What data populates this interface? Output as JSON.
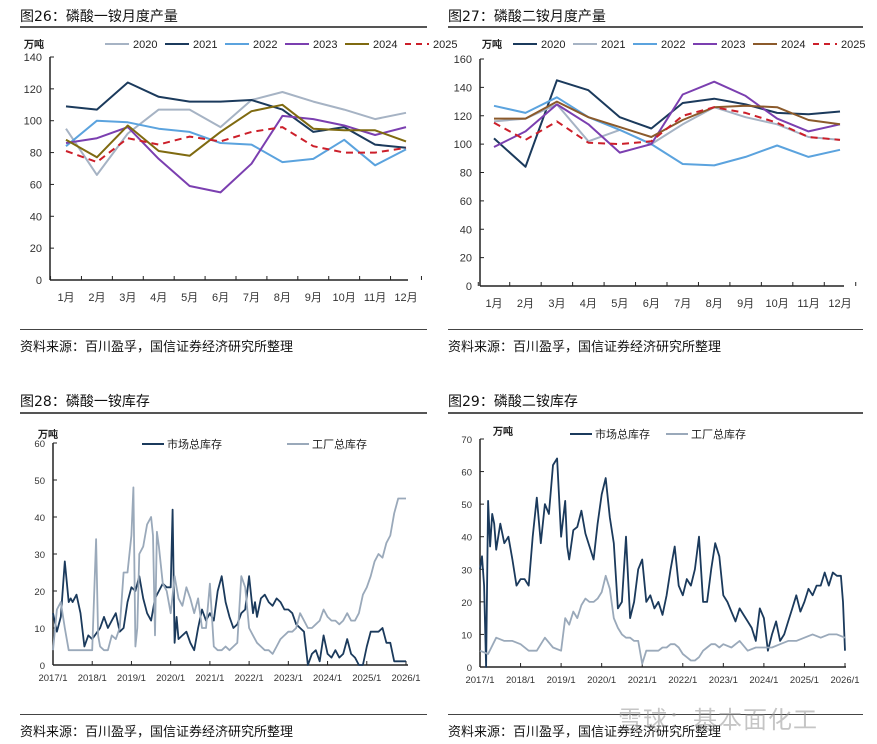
{
  "figures": [
    {
      "title": "图26：磷酸一铵月度产量",
      "source": "资料来源：百川盈孚，国信证券经济研究所整理"
    },
    {
      "title": "图27：磷酸二铵月度产量",
      "source": "资料来源：百川盈孚，国信证券经济研究所整理"
    },
    {
      "title": "图28：磷酸一铵库存",
      "source": "资料来源：百川盈孚，国信证券经济研究所整理"
    },
    {
      "title": "图29：磷酸二铵库存",
      "source": "资料来源：百川盈孚，国信证券经济研究所整理"
    }
  ],
  "watermark": "雪球：基本面化工",
  "chart_data": [
    {
      "type": "line",
      "title": "图26：磷酸一铵月度产量",
      "unit": "万吨",
      "categories": [
        "1月",
        "2月",
        "3月",
        "4月",
        "5月",
        "6月",
        "7月",
        "8月",
        "9月",
        "10月",
        "11月",
        "12月"
      ],
      "ylim": [
        0,
        140
      ],
      "yticks": [
        0,
        20,
        40,
        60,
        80,
        100,
        120,
        140
      ],
      "legend": "top",
      "series": [
        {
          "name": "2020",
          "color": "#a6b3c4",
          "dash": false,
          "values": [
            95,
            66,
            92,
            107,
            107,
            96,
            113,
            118,
            112,
            107,
            101,
            105
          ]
        },
        {
          "name": "2021",
          "color": "#1b3a5c",
          "dash": false,
          "values": [
            109,
            107,
            124,
            115,
            112,
            112,
            113,
            107,
            93,
            96,
            85,
            83
          ]
        },
        {
          "name": "2022",
          "color": "#5ba3de",
          "dash": false,
          "values": [
            84,
            100,
            99,
            95,
            93,
            86,
            85,
            74,
            76,
            88,
            72,
            82
          ]
        },
        {
          "name": "2023",
          "color": "#7b3fb0",
          "dash": false,
          "values": [
            86,
            89,
            96,
            76,
            59,
            55,
            73,
            103,
            101,
            97,
            91,
            96
          ]
        },
        {
          "name": "2024",
          "color": "#7f6a10",
          "dash": false,
          "values": [
            88,
            77,
            97,
            81,
            78,
            93,
            106,
            110,
            95,
            94,
            94,
            87
          ]
        },
        {
          "name": "2025",
          "color": "#cc1f2a",
          "dash": true,
          "values": [
            81,
            74,
            89,
            85,
            90,
            87,
            93,
            96,
            84,
            80,
            80,
            83
          ]
        }
      ]
    },
    {
      "type": "line",
      "title": "图27：磷酸二铵月度产量",
      "unit": "万吨",
      "categories": [
        "1月",
        "2月",
        "3月",
        "4月",
        "5月",
        "6月",
        "7月",
        "8月",
        "9月",
        "10月",
        "11月",
        "12月"
      ],
      "ylim": [
        0,
        160
      ],
      "yticks": [
        0,
        20,
        40,
        60,
        80,
        100,
        120,
        140,
        160
      ],
      "legend": "top",
      "series": [
        {
          "name": "2020",
          "color": "#1b3a5c",
          "dash": false,
          "values": [
            104,
            84,
            145,
            138,
            119,
            111,
            129,
            132,
            128,
            122,
            121,
            123
          ]
        },
        {
          "name": "2021",
          "color": "#a6b3c4",
          "dash": false,
          "values": [
            116,
            118,
            128,
            102,
            110,
            100,
            114,
            126,
            119,
            114,
            105,
            103
          ]
        },
        {
          "name": "2022",
          "color": "#5ba3de",
          "dash": false,
          "values": [
            127,
            122,
            133,
            119,
            110,
            100,
            86,
            85,
            91,
            99,
            91,
            96
          ]
        },
        {
          "name": "2023",
          "color": "#7b3fb0",
          "dash": false,
          "values": [
            98,
            109,
            128,
            114,
            94,
            100,
            135,
            144,
            134,
            118,
            109,
            114
          ]
        },
        {
          "name": "2024",
          "color": "#8b5a2b",
          "dash": false,
          "values": [
            118,
            118,
            130,
            119,
            112,
            105,
            117,
            126,
            127,
            126,
            117,
            114
          ]
        },
        {
          "name": "2025",
          "color": "#cc1f2a",
          "dash": true,
          "values": [
            115,
            103,
            116,
            101,
            100,
            102,
            120,
            126,
            122,
            115,
            105,
            103
          ]
        }
      ]
    },
    {
      "type": "line",
      "title": "图28：磷酸一铵库存",
      "unit": "万吨",
      "xlim": [
        "2017/1",
        "2026/1"
      ],
      "xticks": [
        "2017/1",
        "2018/1",
        "2019/1",
        "2020/1",
        "2021/1",
        "2022/1",
        "2023/1",
        "2024/1",
        "2025/1",
        "2026/1"
      ],
      "ylim": [
        0,
        60
      ],
      "yticks": [
        0,
        10,
        20,
        30,
        40,
        50,
        60
      ],
      "legend": "top",
      "series": [
        {
          "name": "市场总库存",
          "color": "#1b3a5c",
          "x": [
            2017.0,
            2017.1,
            2017.2,
            2017.3,
            2017.4,
            2017.45,
            2017.5,
            2017.6,
            2017.7,
            2017.8,
            2017.9,
            2018.0,
            2018.2,
            2018.3,
            2018.4,
            2018.5,
            2018.6,
            2018.7,
            2018.8,
            2018.9,
            2019.0,
            2019.1,
            2019.2,
            2019.3,
            2019.4,
            2019.5,
            2019.6,
            2019.7,
            2019.8,
            2019.9,
            2020.0,
            2020.05,
            2020.1,
            2020.15,
            2020.2,
            2020.3,
            2020.4,
            2020.5,
            2020.6,
            2020.7,
            2020.8,
            2020.9,
            2021.0,
            2021.1,
            2021.2,
            2021.3,
            2021.4,
            2021.5,
            2021.6,
            2021.7,
            2021.8,
            2021.9,
            2022.0,
            2022.1,
            2022.15,
            2022.2,
            2022.3,
            2022.4,
            2022.5,
            2022.6,
            2022.7,
            2022.8,
            2022.9,
            2023.0,
            2023.1,
            2023.2,
            2023.3,
            2023.4,
            2023.5,
            2023.6,
            2023.7,
            2023.8,
            2023.9,
            2024.0,
            2024.1,
            2024.2,
            2024.3,
            2024.4,
            2024.5,
            2024.6,
            2024.7,
            2024.8,
            2024.9,
            2025.0,
            2025.1,
            2025.2,
            2025.3,
            2025.4,
            2025.5,
            2025.6,
            2025.7,
            2025.8,
            2025.9,
            2026.0
          ],
          "y": [
            14,
            9,
            13,
            28,
            17,
            18,
            17,
            19,
            14,
            5,
            8,
            7,
            10,
            13,
            10,
            12,
            14,
            9,
            10,
            17,
            21,
            20,
            24,
            18,
            14,
            12,
            18,
            20,
            22,
            21,
            21,
            42,
            6,
            13,
            7,
            8,
            9,
            6,
            4,
            10,
            15,
            12,
            14,
            12,
            20,
            24,
            17,
            13,
            10,
            11,
            14,
            15,
            24,
            14,
            17,
            13,
            18,
            19,
            17,
            16,
            18,
            17,
            15,
            15,
            14,
            11,
            10,
            9,
            0,
            3,
            4,
            1,
            8,
            3,
            2,
            4,
            2,
            3,
            7,
            3,
            2,
            0,
            0,
            5,
            9,
            9,
            9,
            10,
            6,
            6,
            1,
            1,
            1,
            1
          ]
        },
        {
          "name": "工厂总库存",
          "color": "#9aa9ba",
          "x": [
            2017.0,
            2017.1,
            2017.2,
            2017.3,
            2017.4,
            2017.5,
            2017.6,
            2017.7,
            2017.8,
            2017.9,
            2018.0,
            2018.1,
            2018.15,
            2018.2,
            2018.3,
            2018.4,
            2018.5,
            2018.6,
            2018.7,
            2018.8,
            2018.9,
            2019.0,
            2019.05,
            2019.1,
            2019.15,
            2019.2,
            2019.3,
            2019.4,
            2019.5,
            2019.55,
            2019.6,
            2019.65,
            2019.7,
            2019.8,
            2019.9,
            2020.0,
            2020.1,
            2020.2,
            2020.3,
            2020.4,
            2020.5,
            2020.6,
            2020.7,
            2020.8,
            2020.9,
            2021.0,
            2021.1,
            2021.2,
            2021.3,
            2021.4,
            2021.5,
            2021.6,
            2021.7,
            2021.8,
            2021.9,
            2022.0,
            2022.1,
            2022.2,
            2022.3,
            2022.4,
            2022.5,
            2022.6,
            2022.7,
            2022.8,
            2022.9,
            2023.0,
            2023.1,
            2023.2,
            2023.3,
            2023.4,
            2023.5,
            2023.6,
            2023.7,
            2023.8,
            2023.9,
            2024.0,
            2024.1,
            2024.2,
            2024.3,
            2024.4,
            2024.5,
            2024.6,
            2024.7,
            2024.8,
            2024.9,
            2025.0,
            2025.1,
            2025.2,
            2025.3,
            2025.4,
            2025.5,
            2025.6,
            2025.7,
            2025.8,
            2025.9,
            2026.0
          ],
          "y": [
            4,
            15,
            17,
            10,
            4,
            4,
            4,
            4,
            4,
            4,
            4,
            34,
            8,
            5,
            4,
            4,
            8,
            7,
            10,
            25,
            25,
            35,
            48,
            5,
            10,
            30,
            32,
            38,
            40,
            35,
            8,
            36,
            32,
            22,
            20,
            14,
            24,
            18,
            16,
            21,
            18,
            14,
            18,
            10,
            10,
            22,
            5,
            4,
            4,
            5,
            4,
            5,
            6,
            24,
            21,
            10,
            8,
            6,
            5,
            4,
            4,
            3,
            5,
            7,
            8,
            9,
            9,
            10,
            14,
            12,
            10,
            10,
            11,
            12,
            15,
            13,
            12,
            12,
            11,
            12,
            14,
            12,
            12,
            14,
            19,
            21,
            24,
            28,
            30,
            29,
            33,
            35,
            41,
            45,
            45,
            45
          ]
        }
      ]
    },
    {
      "type": "line",
      "title": "图29：磷酸二铵库存",
      "unit": "万吨",
      "xlim": [
        "2017/1",
        "2026/1"
      ],
      "xticks": [
        "2017/1",
        "2018/1",
        "2019/1",
        "2020/1",
        "2021/1",
        "2022/1",
        "2023/1",
        "2024/1",
        "2025/1",
        "2026/1"
      ],
      "ylim": [
        0,
        70
      ],
      "yticks": [
        0,
        10,
        20,
        30,
        40,
        50,
        60,
        70
      ],
      "legend": "top",
      "series": [
        {
          "name": "市场总库存",
          "color": "#1b3a5c",
          "x": [
            2017.0,
            2017.05,
            2017.1,
            2017.15,
            2017.2,
            2017.25,
            2017.3,
            2017.35,
            2017.4,
            2017.5,
            2017.6,
            2017.7,
            2017.8,
            2017.9,
            2018.0,
            2018.1,
            2018.2,
            2018.3,
            2018.4,
            2018.5,
            2018.6,
            2018.7,
            2018.8,
            2018.9,
            2019.0,
            2019.1,
            2019.15,
            2019.2,
            2019.3,
            2019.4,
            2019.5,
            2019.6,
            2019.7,
            2019.8,
            2019.9,
            2020.0,
            2020.1,
            2020.2,
            2020.3,
            2020.4,
            2020.5,
            2020.6,
            2020.7,
            2020.8,
            2020.9,
            2021.0,
            2021.1,
            2021.2,
            2021.3,
            2021.4,
            2021.5,
            2021.6,
            2021.7,
            2021.8,
            2021.9,
            2022.0,
            2022.1,
            2022.2,
            2022.3,
            2022.4,
            2022.5,
            2022.6,
            2022.7,
            2022.8,
            2022.9,
            2023.0,
            2023.1,
            2023.2,
            2023.3,
            2023.4,
            2023.5,
            2023.6,
            2023.7,
            2023.8,
            2023.9,
            2024.0,
            2024.1,
            2024.2,
            2024.3,
            2024.4,
            2024.5,
            2024.6,
            2024.7,
            2024.8,
            2024.9,
            2025.0,
            2025.1,
            2025.2,
            2025.3,
            2025.4,
            2025.5,
            2025.6,
            2025.7,
            2025.8,
            2025.9,
            2025.95,
            2026.0
          ],
          "y": [
            30,
            34,
            25,
            0,
            51,
            37,
            47,
            44,
            36,
            44,
            38,
            40,
            33,
            25,
            27,
            27,
            25,
            40,
            52,
            38,
            50,
            47,
            62,
            64,
            40,
            51,
            37,
            33,
            42,
            43,
            48,
            41,
            37,
            33,
            44,
            53,
            58,
            46,
            38,
            18,
            20,
            40,
            15,
            20,
            30,
            33,
            20,
            22,
            18,
            20,
            16,
            22,
            30,
            37,
            25,
            22,
            27,
            25,
            30,
            40,
            20,
            20,
            30,
            38,
            34,
            22,
            20,
            17,
            14,
            18,
            16,
            14,
            12,
            8,
            18,
            15,
            5,
            10,
            14,
            8,
            10,
            14,
            18,
            22,
            17,
            20,
            24,
            22,
            25,
            25,
            29,
            25,
            29,
            28,
            28,
            20,
            5
          ]
        },
        {
          "name": "工厂总库存",
          "color": "#9aa9ba",
          "x": [
            2017.0,
            2017.2,
            2017.4,
            2017.6,
            2017.8,
            2018.0,
            2018.2,
            2018.4,
            2018.6,
            2018.8,
            2019.0,
            2019.1,
            2019.2,
            2019.3,
            2019.4,
            2019.5,
            2019.6,
            2019.7,
            2019.8,
            2019.9,
            2020.0,
            2020.1,
            2020.2,
            2020.3,
            2020.4,
            2020.5,
            2020.6,
            2020.7,
            2020.8,
            2020.9,
            2021.0,
            2021.1,
            2021.2,
            2021.3,
            2021.4,
            2021.5,
            2021.6,
            2021.7,
            2021.8,
            2021.9,
            2022.0,
            2022.1,
            2022.2,
            2022.3,
            2022.4,
            2022.5,
            2022.6,
            2022.7,
            2022.8,
            2022.9,
            2023.0,
            2023.2,
            2023.4,
            2023.6,
            2023.8,
            2024.0,
            2024.2,
            2024.4,
            2024.6,
            2024.8,
            2025.0,
            2025.2,
            2025.4,
            2025.6,
            2025.8,
            2026.0
          ],
          "y": [
            5,
            4,
            9,
            8,
            8,
            7,
            5,
            5,
            9,
            6,
            5,
            15,
            13,
            17,
            15,
            19,
            21,
            20,
            20,
            21,
            23,
            28,
            24,
            15,
            12,
            10,
            9,
            9,
            8,
            8,
            1,
            5,
            5,
            5,
            5,
            6,
            6,
            7,
            7,
            6,
            4,
            3,
            2,
            2,
            3,
            5,
            6,
            7,
            7,
            6,
            7,
            6,
            8,
            5,
            6,
            6,
            6,
            7,
            8,
            8,
            9,
            10,
            9,
            10,
            10,
            9
          ]
        }
      ]
    }
  ]
}
